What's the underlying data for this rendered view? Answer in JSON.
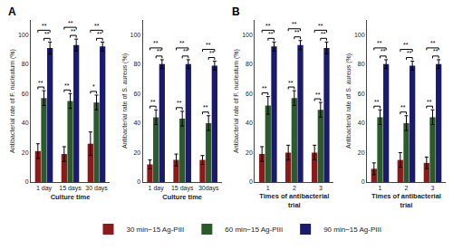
{
  "chart_data": [
    {
      "type": "bar",
      "title": "A",
      "categories": [
        "1 day",
        "15 days",
        "30 days"
      ],
      "xlabel": "Culture time",
      "ylabel": "Antibacterial rate of F. nucleatum (%)",
      "ylim": [
        0,
        110
      ],
      "yticks": [
        0,
        20,
        40,
        60,
        80,
        100
      ],
      "grid": false,
      "series": [
        {
          "name": "30 min−15 Ag-PIII",
          "color": "#8B1A1A",
          "values": [
            21,
            19,
            26
          ],
          "errors": [
            5,
            5,
            8
          ]
        },
        {
          "name": "60 min−15 Ag-PIII",
          "color": "#2D5A2D",
          "values": [
            57,
            55,
            54
          ],
          "errors": [
            5,
            5,
            5
          ]
        },
        {
          "name": "90 min−15 Ag-PIII",
          "color": "#1A1A6E",
          "values": [
            91,
            93,
            92
          ],
          "errors": [
            4,
            4,
            3
          ]
        }
      ],
      "brackets": [
        {
          "between": [
            "30 min−15 Ag-PIII",
            "60 min−15 Ag-PIII"
          ],
          "labels": [
            "**",
            "**",
            "*"
          ]
        },
        {
          "between": [
            "60 min−15 Ag-PIII",
            "90 min−15 Ag-PIII"
          ],
          "labels": [
            "**",
            "**",
            "**"
          ]
        },
        {
          "between": [
            "30 min−15 Ag-PIII",
            "90 min−15 Ag-PIII"
          ],
          "labels": [
            "**",
            "**",
            "**"
          ]
        }
      ]
    },
    {
      "type": "bar",
      "categories": [
        "1 day",
        "15 days",
        "30days"
      ],
      "xlabel": "Culture time",
      "ylabel": "Antibacterial rate of S. aureus (%)",
      "ylim": [
        0,
        110
      ],
      "yticks": [
        0,
        20,
        40,
        60,
        80,
        100
      ],
      "grid": false,
      "series": [
        {
          "name": "30 min−15 Ag-PIII",
          "color": "#8B1A1A",
          "values": [
            12,
            15,
            15
          ],
          "errors": [
            3,
            4,
            3
          ]
        },
        {
          "name": "60 min−15 Ag-PIII",
          "color": "#2D5A2D",
          "values": [
            44,
            43,
            40
          ],
          "errors": [
            5,
            5,
            5
          ]
        },
        {
          "name": "90 min−15 Ag-PIII",
          "color": "#1A1A6E",
          "values": [
            80,
            80,
            79
          ],
          "errors": [
            3,
            3,
            3
          ]
        }
      ],
      "brackets": [
        {
          "between": [
            "30 min−15 Ag-PIII",
            "60 min−15 Ag-PIII"
          ],
          "labels": [
            "**",
            "**",
            "**"
          ]
        },
        {
          "between": [
            "60 min−15 Ag-PIII",
            "90 min−15 Ag-PIII"
          ],
          "labels": [
            "**",
            "**",
            "**"
          ]
        },
        {
          "between": [
            "30 min−15 Ag-PIII",
            "90 min−15 Ag-PIII"
          ],
          "labels": [
            "**",
            "**",
            "**"
          ]
        }
      ]
    },
    {
      "type": "bar",
      "title": "B",
      "categories": [
        "1",
        "2",
        "3"
      ],
      "xlabel": "Times of antibacterial\ntrial",
      "ylabel": "Antibacterial rate of F. nucleatum (%)",
      "ylim": [
        0,
        110
      ],
      "yticks": [
        0,
        20,
        40,
        60,
        80,
        100
      ],
      "grid": false,
      "series": [
        {
          "name": "30 min−15 Ag-PIII",
          "color": "#8B1A1A",
          "values": [
            19,
            20,
            20
          ],
          "errors": [
            5,
            5,
            5
          ]
        },
        {
          "name": "60 min−15 Ag-PIII",
          "color": "#2D5A2D",
          "values": [
            52,
            57,
            49
          ],
          "errors": [
            6,
            5,
            5
          ]
        },
        {
          "name": "90 min−15 Ag-PIII",
          "color": "#1A1A6E",
          "values": [
            92,
            93,
            91
          ],
          "errors": [
            3,
            3,
            4
          ]
        }
      ],
      "brackets": [
        {
          "between": [
            "30 min−15 Ag-PIII",
            "60 min−15 Ag-PIII"
          ],
          "labels": [
            "**",
            "**",
            "**"
          ]
        },
        {
          "between": [
            "60 min−15 Ag-PIII",
            "90 min−15 Ag-PIII"
          ],
          "labels": [
            "**",
            "**",
            "**"
          ]
        },
        {
          "between": [
            "30 min−15 Ag-PIII",
            "90 min−15 Ag-PIII"
          ],
          "labels": [
            "**",
            "**",
            "**"
          ]
        }
      ]
    },
    {
      "type": "bar",
      "categories": [
        "1",
        "2",
        "3"
      ],
      "xlabel": "Times of antibacterial\ntrial",
      "ylabel": "Antibacterial rate of S. aureus (%)",
      "ylim": [
        0,
        110
      ],
      "yticks": [
        0,
        20,
        40,
        60,
        80,
        100
      ],
      "grid": false,
      "series": [
        {
          "name": "30 min−15 Ag-PIII",
          "color": "#8B1A1A",
          "values": [
            9,
            15,
            13
          ],
          "errors": [
            4,
            5,
            4
          ]
        },
        {
          "name": "60 min−15 Ag-PIII",
          "color": "#2D5A2D",
          "values": [
            44,
            40,
            44
          ],
          "errors": [
            5,
            5,
            5
          ]
        },
        {
          "name": "90 min−15 Ag-PIII",
          "color": "#1A1A6E",
          "values": [
            80,
            79,
            80
          ],
          "errors": [
            3,
            3,
            3
          ]
        }
      ],
      "brackets": [
        {
          "between": [
            "30 min−15 Ag-PIII",
            "60 min−15 Ag-PIII"
          ],
          "labels": [
            "**",
            "**",
            "**"
          ]
        },
        {
          "between": [
            "60 min−15 Ag-PIII",
            "90 min−15 Ag-PIII"
          ],
          "labels": [
            "**",
            "**",
            "**"
          ]
        },
        {
          "between": [
            "30 min−15 Ag-PIII",
            "90 min−15 Ag-PIII"
          ],
          "labels": [
            "**",
            "**",
            "**"
          ]
        }
      ]
    }
  ]
}
